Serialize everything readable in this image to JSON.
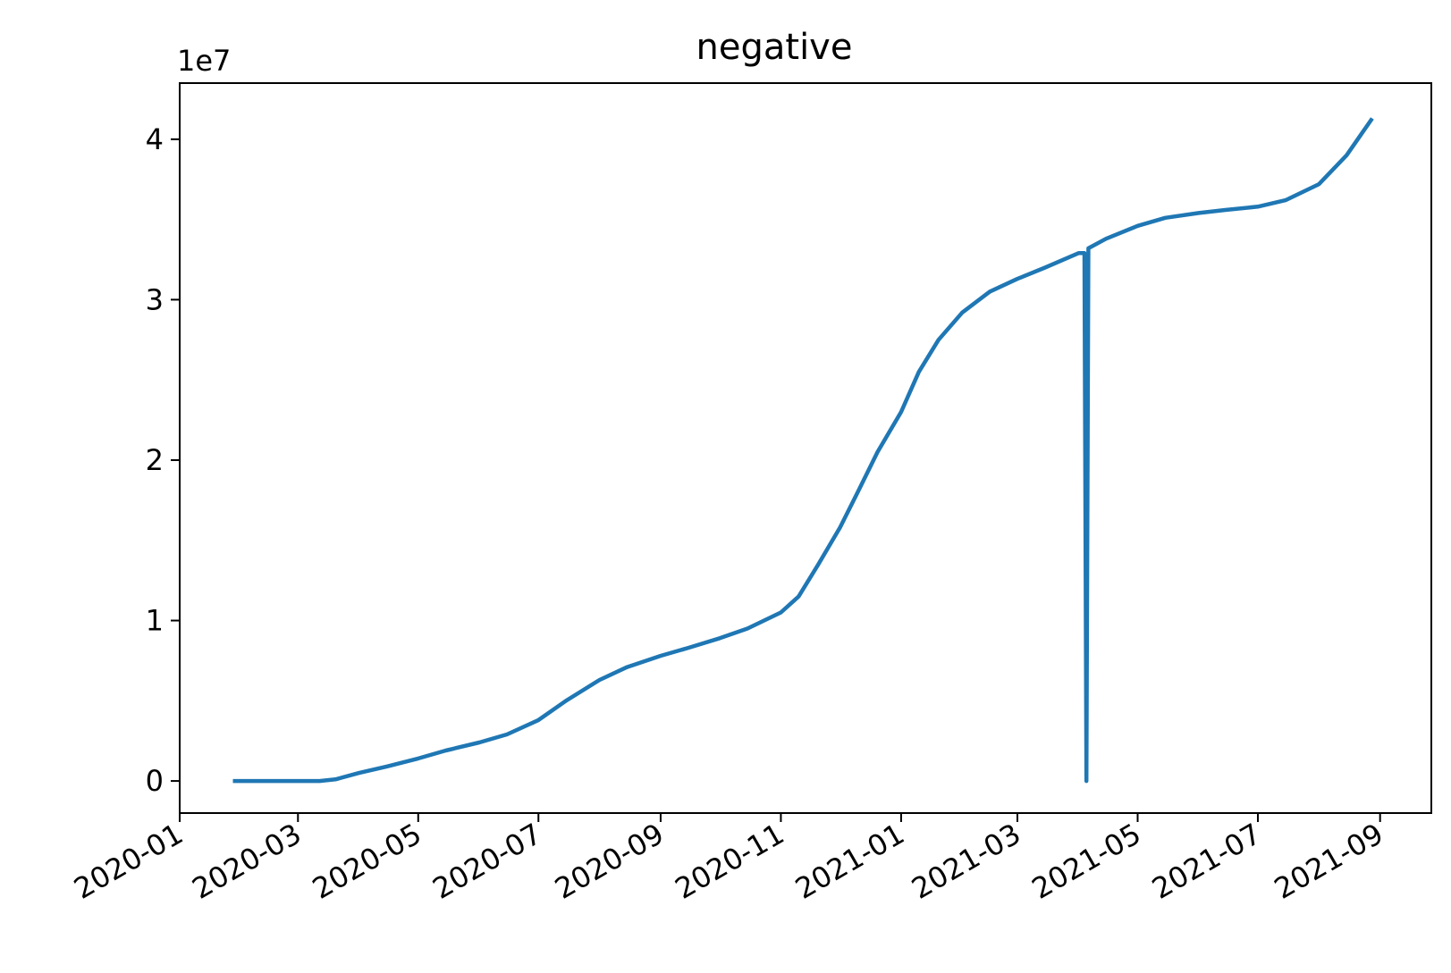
{
  "chart_data": {
    "type": "line",
    "title": "negative",
    "xlabel": "",
    "ylabel": "",
    "y_offset_label": "1e7",
    "x_axis_type": "date",
    "xlim": [
      "2020-01-01",
      "2021-09-27"
    ],
    "ylim": [
      -2000000,
      43500000
    ],
    "grid": false,
    "x_ticks": [
      "2020-01",
      "2020-03",
      "2020-05",
      "2020-07",
      "2020-09",
      "2020-11",
      "2021-01",
      "2021-03",
      "2021-05",
      "2021-07",
      "2021-09"
    ],
    "y_ticks": [
      {
        "value": 0,
        "label": "0"
      },
      {
        "value": 10000000,
        "label": "1"
      },
      {
        "value": 20000000,
        "label": "2"
      },
      {
        "value": 30000000,
        "label": "3"
      },
      {
        "value": 40000000,
        "label": "4"
      }
    ],
    "series": [
      {
        "color": "#1f77b4",
        "x": [
          "2020-01-28",
          "2020-02-15",
          "2020-03-01",
          "2020-03-12",
          "2020-03-20",
          "2020-04-01",
          "2020-04-15",
          "2020-05-01",
          "2020-05-15",
          "2020-06-01",
          "2020-06-15",
          "2020-07-01",
          "2020-07-15",
          "2020-08-01",
          "2020-08-15",
          "2020-09-01",
          "2020-09-15",
          "2020-10-01",
          "2020-10-15",
          "2020-11-01",
          "2020-11-10",
          "2020-11-20",
          "2020-12-01",
          "2020-12-10",
          "2020-12-20",
          "2021-01-01",
          "2021-01-10",
          "2021-01-20",
          "2021-02-01",
          "2021-02-15",
          "2021-03-01",
          "2021-03-15",
          "2021-04-01",
          "2021-04-04",
          "2021-04-05",
          "2021-04-06",
          "2021-04-15",
          "2021-05-01",
          "2021-05-15",
          "2021-06-01",
          "2021-06-15",
          "2021-07-01",
          "2021-07-15",
          "2021-08-01",
          "2021-08-15",
          "2021-08-28"
        ],
        "y": [
          0,
          0,
          0,
          0,
          100000,
          500000,
          900000,
          1400000,
          1900000,
          2400000,
          2900000,
          3800000,
          5000000,
          6300000,
          7100000,
          7800000,
          8300000,
          8900000,
          9500000,
          10500000,
          11500000,
          13500000,
          15800000,
          18000000,
          20500000,
          23000000,
          25500000,
          27500000,
          29200000,
          30500000,
          31300000,
          32000000,
          32900000,
          32900000,
          0,
          33200000,
          33800000,
          34600000,
          35100000,
          35400000,
          35600000,
          35800000,
          36200000,
          37200000,
          39000000,
          41300000
        ]
      }
    ]
  }
}
